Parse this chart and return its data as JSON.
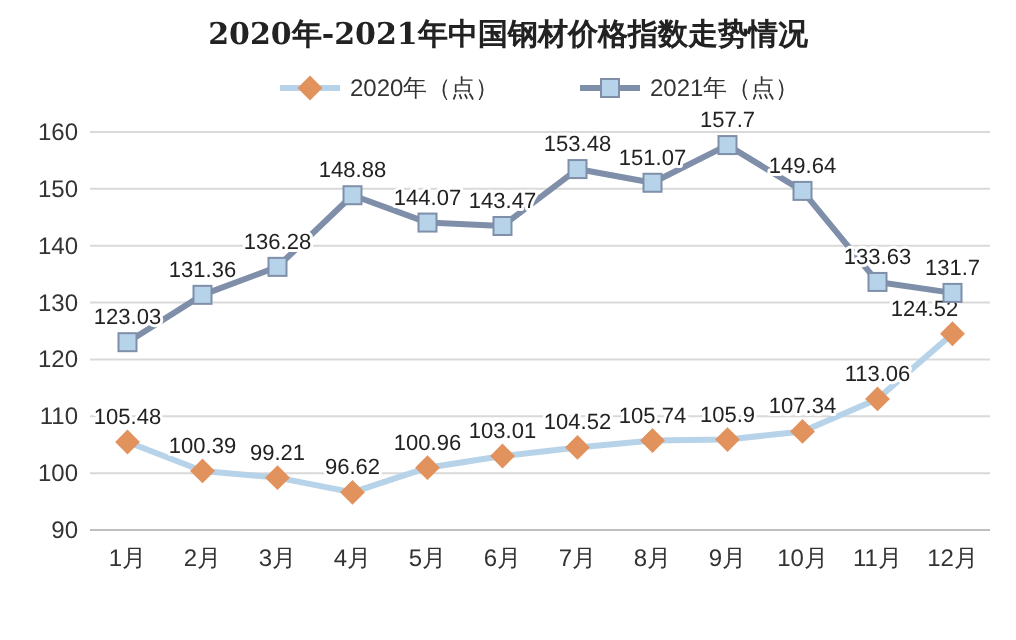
{
  "chart_data": {
    "type": "line",
    "title": "2020年-2021年中国钢材价格指数走势情况",
    "categories": [
      "1月",
      "2月",
      "3月",
      "4月",
      "5月",
      "6月",
      "7月",
      "8月",
      "9月",
      "10月",
      "11月",
      "12月"
    ],
    "series": [
      {
        "name": "2020年（点）",
        "color": "#b7d3ea",
        "marker": "diamond",
        "colors": [
          "#e2925c",
          "#e2925c",
          "#e2925c",
          "#e2925c",
          "#e2925c",
          "#e2925c",
          "#e2925c",
          "#e2925c",
          "#e2925c",
          "#e2925c",
          "#e2925c",
          "#e2925c"
        ],
        "values": [
          105.48,
          100.39,
          99.21,
          96.62,
          100.96,
          103.01,
          104.52,
          105.74,
          105.9,
          107.34,
          113.06,
          124.52
        ]
      },
      {
        "name": "2021年（点）",
        "color": "#7f8fa9",
        "marker": "square",
        "colors": [
          "#b7d3ea",
          "#b7d3ea",
          "#b7d3ea",
          "#b7d3ea",
          "#b7d3ea",
          "#b7d3ea",
          "#b7d3ea",
          "#b7d3ea",
          "#b7d3ea",
          "#b7d3ea",
          "#b7d3ea",
          "#b7d3ea"
        ],
        "values": [
          123.03,
          131.36,
          136.28,
          148.88,
          144.07,
          143.47,
          153.48,
          151.07,
          157.7,
          149.64,
          133.63,
          131.7
        ]
      }
    ],
    "ylim": [
      90,
      160
    ],
    "yticks": [
      90,
      100,
      110,
      120,
      130,
      140,
      150,
      160
    ],
    "grid": "y",
    "legend": "top",
    "data_labels": true
  }
}
